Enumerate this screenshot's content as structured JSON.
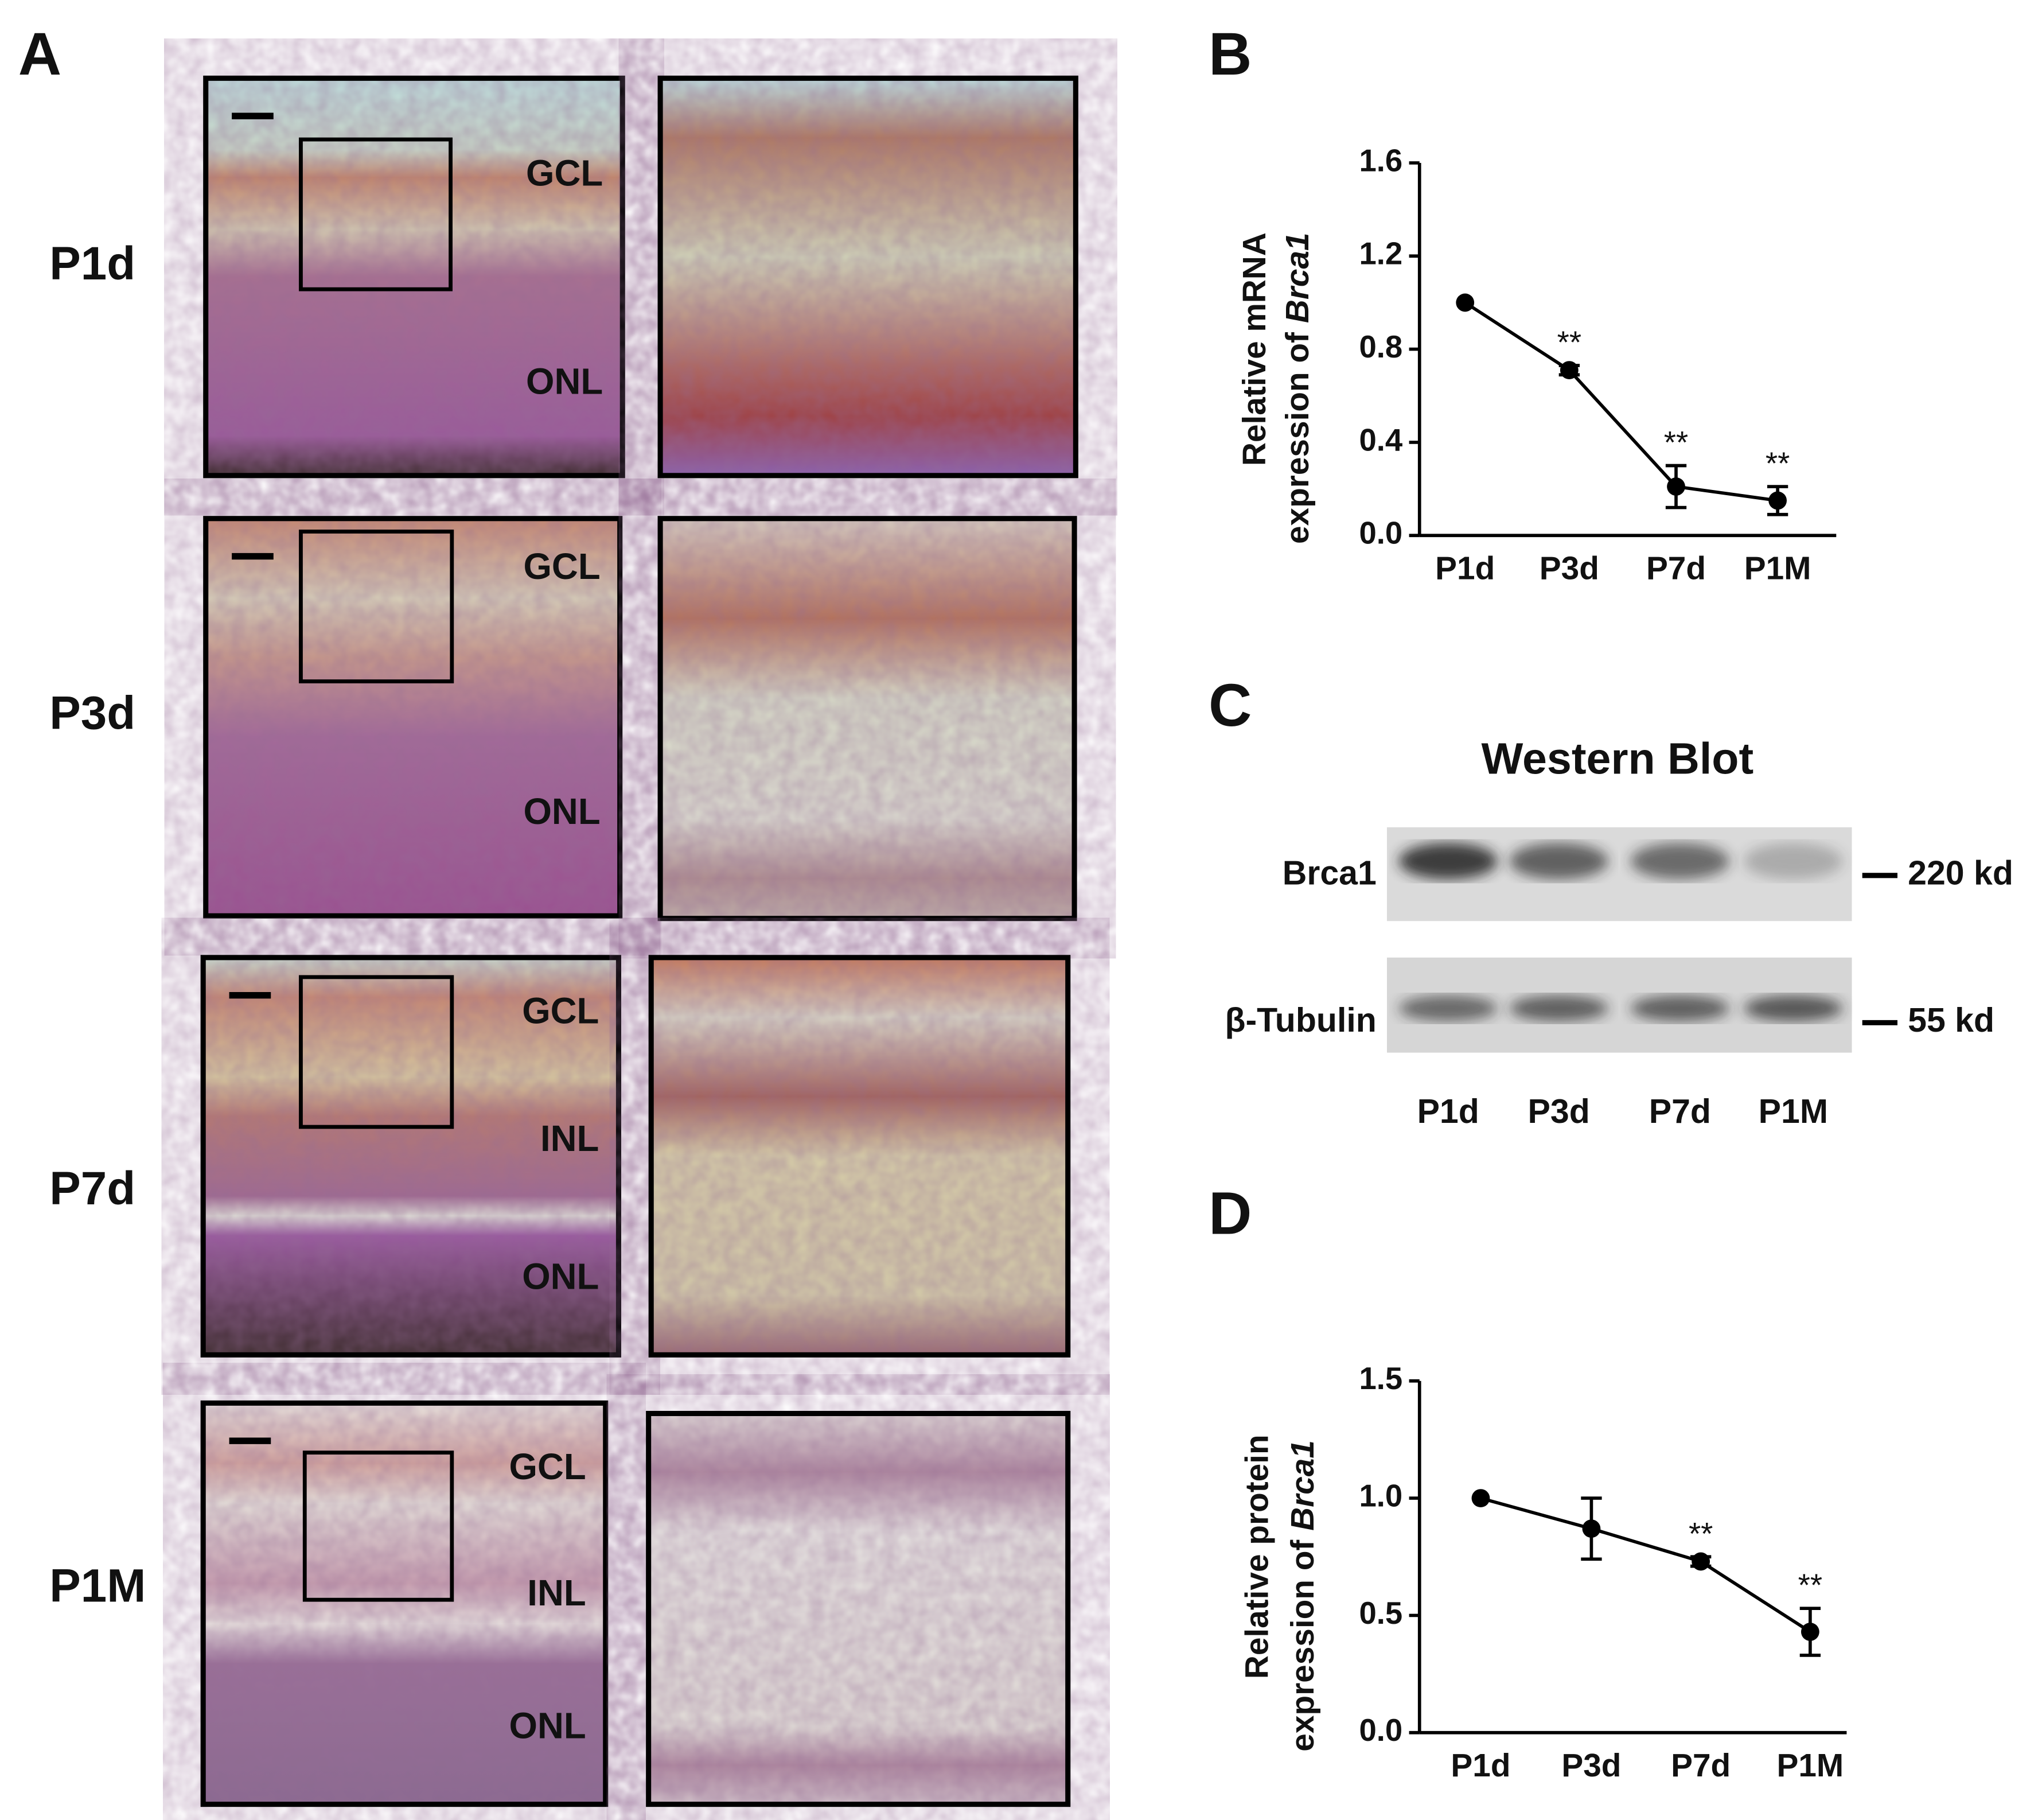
{
  "panel_labels": [
    "A",
    "B",
    "C",
    "D"
  ],
  "histology": {
    "rows": [
      {
        "label": "P1d",
        "layers": [
          "GCL",
          "ONL"
        ]
      },
      {
        "label": "P3d",
        "layers": [
          "GCL",
          "ONL"
        ]
      },
      {
        "label": "P7d",
        "layers": [
          "GCL",
          "INL",
          "ONL"
        ]
      },
      {
        "label": "P1M",
        "layers": [
          "GCL",
          "INL",
          "ONL"
        ]
      }
    ]
  },
  "western_blot": {
    "title": "Western Blot",
    "bands": [
      {
        "label": "Brca1",
        "size": "220 kd"
      },
      {
        "label": "β-Tubulin",
        "size": "55 kd"
      }
    ],
    "lanes": [
      "P1d",
      "P3d",
      "P7d",
      "P1M"
    ]
  },
  "chart_data": [
    {
      "type": "line",
      "ylabel": [
        "Relative mRNA",
        "expression of",
        "Brca1"
      ],
      "categories": [
        "P1d",
        "P3d",
        "P7d",
        "P1M"
      ],
      "values": [
        1.0,
        0.71,
        0.21,
        0.15
      ],
      "errors": [
        0,
        0.02,
        0.09,
        0.06
      ],
      "significance": [
        null,
        "**",
        "**",
        "**"
      ],
      "color": "#000000",
      "ylim": [
        0,
        1.6
      ],
      "yticks": [
        {
          "value": 0,
          "label": "0.0"
        },
        0.4,
        0.8,
        1.2,
        1.6
      ]
    },
    {
      "type": "line",
      "ylabel": [
        "Relative protein",
        "expression of",
        "Brca1"
      ],
      "categories": [
        "P1d",
        "P3d",
        "P7d",
        "P1M"
      ],
      "values": [
        1.0,
        0.87,
        0.73,
        0.43
      ],
      "errors": [
        0,
        0.13,
        0.02,
        0.1
      ],
      "significance": [
        null,
        null,
        "**",
        "**"
      ],
      "color": "#000000",
      "ylim": [
        0,
        1.5
      ],
      "yticks": [
        {
          "value": 0,
          "label": "0.0"
        },
        0.5,
        {
          "value": 1,
          "label": "1.0"
        },
        1.5
      ]
    }
  ]
}
